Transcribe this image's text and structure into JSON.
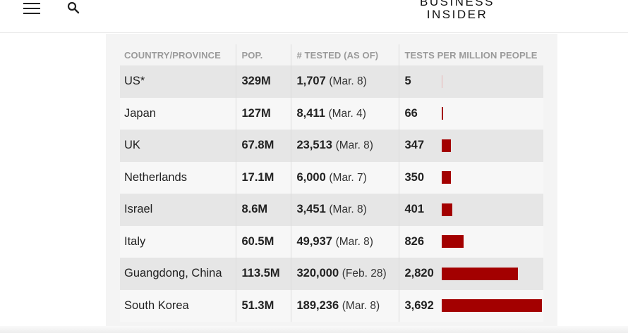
{
  "header": {
    "logo_line1": "BUSINESS",
    "logo_line2": "INSIDER",
    "menu_icon": "hamburger-menu-icon",
    "search_icon": "search-icon"
  },
  "table": {
    "columns": [
      "COUNTRY/PROVINCE",
      "POP.",
      "# TESTED (AS OF)",
      "TESTS PER MILLION PEOPLE"
    ],
    "rows": [
      {
        "country": "US*",
        "pop": "329M",
        "tested": "1,707",
        "date": "(Mar. 8)",
        "per_million": "5",
        "per_million_value": 5
      },
      {
        "country": "Japan",
        "pop": "127M",
        "tested": "8,411",
        "date": "(Mar. 4)",
        "per_million": "66",
        "per_million_value": 66
      },
      {
        "country": "UK",
        "pop": "67.8M",
        "tested": "23,513",
        "date": "(Mar. 8)",
        "per_million": "347",
        "per_million_value": 347
      },
      {
        "country": "Netherlands",
        "pop": "17.1M",
        "tested": "6,000",
        "date": "(Mar. 7)",
        "per_million": "350",
        "per_million_value": 350
      },
      {
        "country": "Israel",
        "pop": "8.6M",
        "tested": "3,451",
        "date": "(Mar. 8)",
        "per_million": "401",
        "per_million_value": 401
      },
      {
        "country": "Italy",
        "pop": "60.5M",
        "tested": "49,937",
        "date": "(Mar. 8)",
        "per_million": "826",
        "per_million_value": 826
      },
      {
        "country": "Guangdong, China",
        "pop": "113.5M",
        "tested": "320,000",
        "date": "(Feb. 28)",
        "per_million": "2,820",
        "per_million_value": 2820
      },
      {
        "country": "South Korea",
        "pop": "51.3M",
        "tested": "189,236",
        "date": "(Mar. 8)",
        "per_million": "3,692",
        "per_million_value": 3692
      }
    ],
    "bar_color": "#a30000"
  }
}
